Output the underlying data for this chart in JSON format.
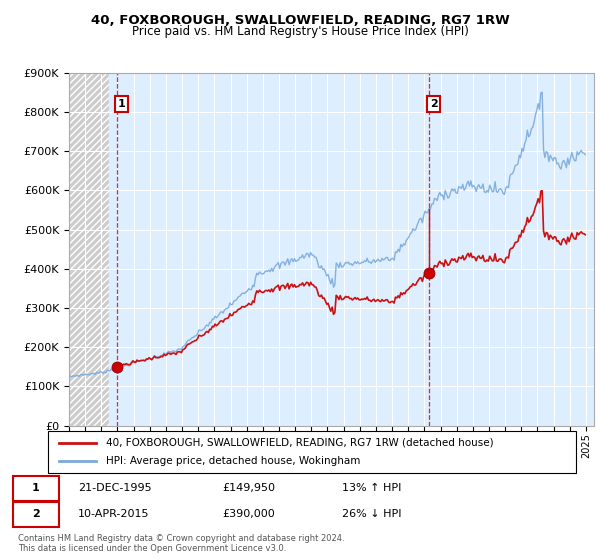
{
  "title": "40, FOXBOROUGH, SWALLOWFIELD, READING, RG7 1RW",
  "subtitle": "Price paid vs. HM Land Registry's House Price Index (HPI)",
  "legend_line1": "40, FOXBOROUGH, SWALLOWFIELD, READING, RG7 1RW (detached house)",
  "legend_line2": "HPI: Average price, detached house, Wokingham",
  "transaction1_date": "21-DEC-1995",
  "transaction1_price": "£149,950",
  "transaction1_hpi": "13% ↑ HPI",
  "transaction2_date": "10-APR-2015",
  "transaction2_price": "£390,000",
  "transaction2_hpi": "26% ↓ HPI",
  "footer": "Contains HM Land Registry data © Crown copyright and database right 2024.\nThis data is licensed under the Open Government Licence v3.0.",
  "hpi_color": "#7aaadd",
  "price_color": "#cc1111",
  "marker_color": "#cc0000",
  "bg_hatch_color": "#d0d0d0",
  "bg_chart_color": "#ddeeff",
  "grid_color": "#ffffff",
  "ylim": [
    0,
    900000
  ],
  "yticks": [
    0,
    100000,
    200000,
    300000,
    400000,
    500000,
    600000,
    700000,
    800000,
    900000
  ],
  "transaction1_x": 1995.97,
  "transaction1_y": 149950,
  "transaction2_x": 2015.27,
  "transaction2_y": 390000,
  "xmin": 1993.0,
  "xmax": 2025.5
}
